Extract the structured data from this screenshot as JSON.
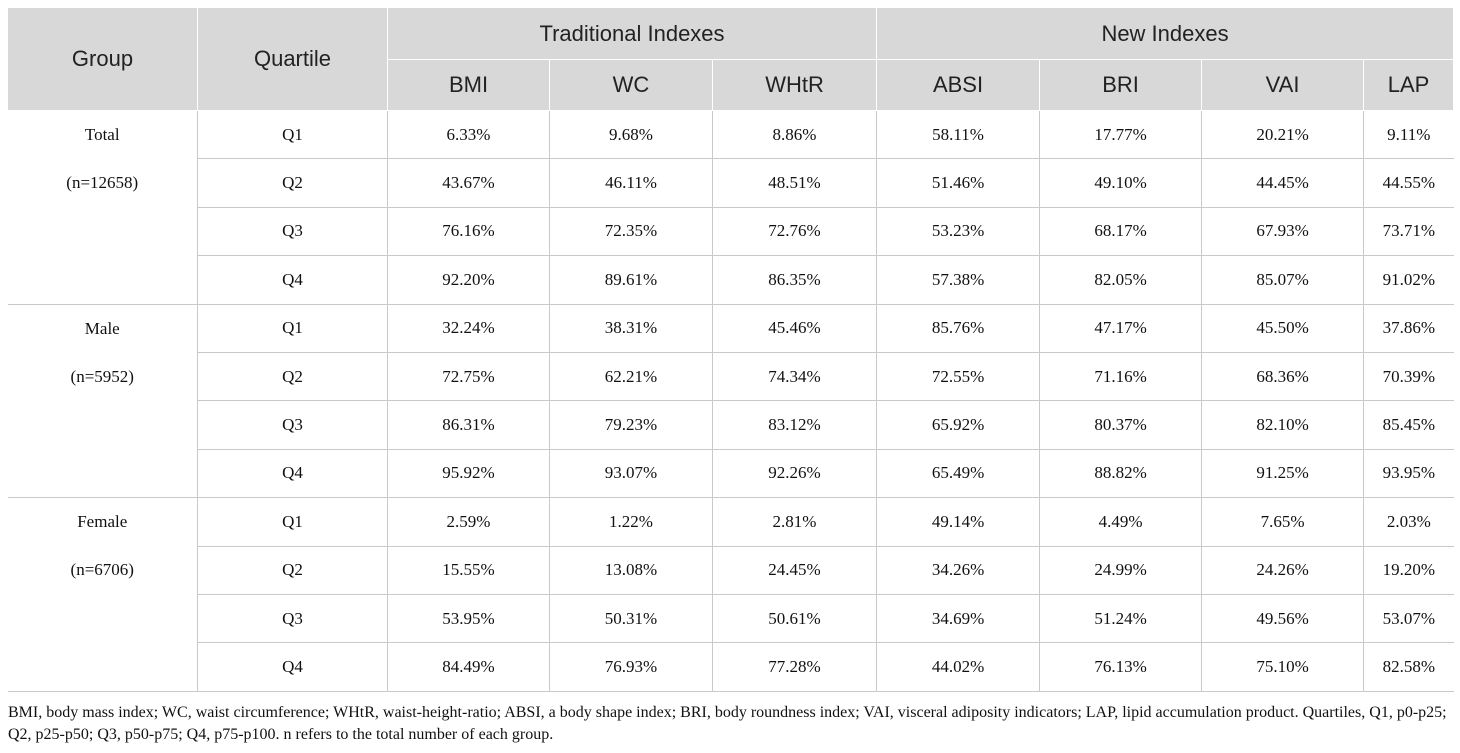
{
  "table": {
    "header": {
      "group": "Group",
      "quartile": "Quartile",
      "traditional": "Traditional Indexes",
      "new": "New Indexes",
      "columns": [
        "BMI",
        "WC",
        "WHtR",
        "ABSI",
        "BRI",
        "VAI",
        "LAP"
      ]
    },
    "rows": [
      {
        "group": "Total",
        "quartile": "Q1",
        "values": [
          "6.33%",
          "9.68%",
          "8.86%",
          "58.11%",
          "17.77%",
          "20.21%",
          "9.11%"
        ]
      },
      {
        "group": "(n=12658)",
        "quartile": "Q2",
        "values": [
          "43.67%",
          "46.11%",
          "48.51%",
          "51.46%",
          "49.10%",
          "44.45%",
          "44.55%"
        ]
      },
      {
        "group": "",
        "quartile": "Q3",
        "values": [
          "76.16%",
          "72.35%",
          "72.76%",
          "53.23%",
          "68.17%",
          "67.93%",
          "73.71%"
        ]
      },
      {
        "group": "",
        "quartile": "Q4",
        "values": [
          "92.20%",
          "89.61%",
          "86.35%",
          "57.38%",
          "82.05%",
          "85.07%",
          "91.02%"
        ]
      },
      {
        "group": "Male",
        "quartile": "Q1",
        "values": [
          "32.24%",
          "38.31%",
          "45.46%",
          "85.76%",
          "47.17%",
          "45.50%",
          "37.86%"
        ]
      },
      {
        "group": "(n=5952)",
        "quartile": "Q2",
        "values": [
          "72.75%",
          "62.21%",
          "74.34%",
          "72.55%",
          "71.16%",
          "68.36%",
          "70.39%"
        ]
      },
      {
        "group": "",
        "quartile": "Q3",
        "values": [
          "86.31%",
          "79.23%",
          "83.12%",
          "65.92%",
          "80.37%",
          "82.10%",
          "85.45%"
        ]
      },
      {
        "group": "",
        "quartile": "Q4",
        "values": [
          "95.92%",
          "93.07%",
          "92.26%",
          "65.49%",
          "88.82%",
          "91.25%",
          "93.95%"
        ]
      },
      {
        "group": "Female",
        "quartile": "Q1",
        "values": [
          "2.59%",
          "1.22%",
          "2.81%",
          "49.14%",
          "4.49%",
          "7.65%",
          "2.03%"
        ]
      },
      {
        "group": "(n=6706)",
        "quartile": "Q2",
        "values": [
          "15.55%",
          "13.08%",
          "24.45%",
          "34.26%",
          "24.99%",
          "24.26%",
          "19.20%"
        ]
      },
      {
        "group": "",
        "quartile": "Q3",
        "values": [
          "53.95%",
          "50.31%",
          "50.61%",
          "34.69%",
          "51.24%",
          "49.56%",
          "53.07%"
        ]
      },
      {
        "group": "",
        "quartile": "Q4",
        "values": [
          "84.49%",
          "76.93%",
          "77.28%",
          "44.02%",
          "76.13%",
          "75.10%",
          "82.58%"
        ]
      }
    ]
  },
  "footnote": "BMI, body mass index; WC, waist circumference; WHtR, waist-height-ratio; ABSI, a body shape index; BRI, body roundness index; VAI, visceral adiposity indicators; LAP, lipid accumulation product. Quartiles, Q1, p0-p25; Q2, p25-p50; Q3, p50-p75; Q4, p75-p100. n refers to the total number of each group."
}
